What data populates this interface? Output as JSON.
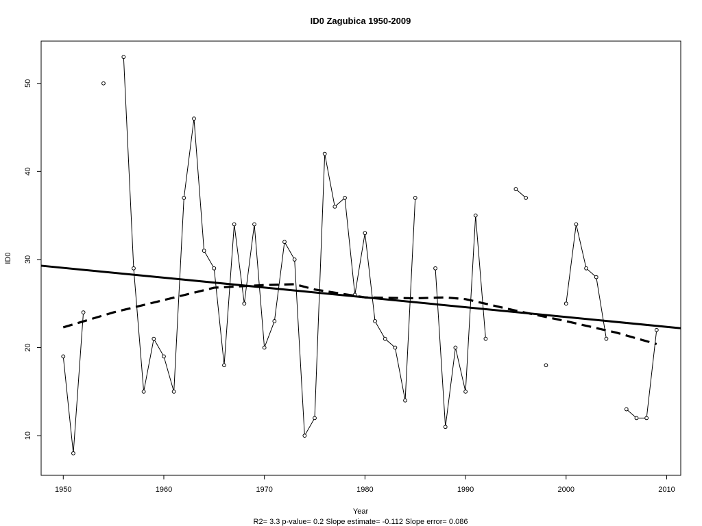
{
  "chart_data": {
    "type": "line",
    "title": "ID0   Zagubica 1950-2009",
    "xlabel": "Year",
    "ylabel": "ID0",
    "footer": "R2= 3.3  p-value= 0.2  Slope estimate= -0.112  Slope error= 0.086",
    "xlim": [
      1947.8,
      2011.4
    ],
    "ylim": [
      5.5,
      54.8
    ],
    "xticks": [
      1950,
      1960,
      1970,
      1980,
      1990,
      2000,
      2010
    ],
    "yticks": [
      10,
      20,
      30,
      40,
      50
    ],
    "grid": false,
    "series": [
      {
        "style": "points-and-lines",
        "x": [
          1950,
          1951,
          1952,
          1953,
          1954,
          1955,
          1956,
          1957,
          1958,
          1959,
          1960,
          1961,
          1962,
          1963,
          1964,
          1965,
          1966,
          1967,
          1968,
          1969,
          1970,
          1971,
          1972,
          1973,
          1974,
          1975,
          1976,
          1977,
          1978,
          1979,
          1980,
          1981,
          1982,
          1983,
          1984,
          1985,
          1986,
          1987,
          1988,
          1989,
          1990,
          1991,
          1992,
          1993,
          1994,
          1995,
          1996,
          1997,
          1998,
          1999,
          2000,
          2001,
          2002,
          2003,
          2004,
          2005,
          2006,
          2007,
          2008,
          2009
        ],
        "y": [
          19,
          8,
          24,
          null,
          50,
          null,
          53,
          29,
          15,
          21,
          19,
          15,
          37,
          46,
          31,
          29,
          18,
          34,
          25,
          34,
          20,
          23,
          32,
          30,
          10,
          12,
          42,
          36,
          37,
          26,
          33,
          23,
          21,
          20,
          14,
          37,
          null,
          29,
          11,
          20,
          15,
          35,
          21,
          null,
          null,
          38,
          37,
          null,
          18,
          null,
          25,
          34,
          29,
          28,
          21,
          null,
          13,
          12,
          12,
          22
        ]
      },
      {
        "style": "linear-trend",
        "x": [
          1947.8,
          2011.4
        ],
        "y": [
          29.3,
          22.2
        ]
      },
      {
        "style": "smooth-dashed",
        "x": [
          1950,
          1955,
          1960,
          1965,
          1970,
          1973,
          1975,
          1980,
          1985,
          1988,
          1990,
          1995,
          2000,
          2005,
          2009
        ],
        "y": [
          22.3,
          24.0,
          25.4,
          26.8,
          27.1,
          27.2,
          26.6,
          25.7,
          25.6,
          25.7,
          25.5,
          24.2,
          23.0,
          21.7,
          20.4
        ]
      }
    ]
  }
}
